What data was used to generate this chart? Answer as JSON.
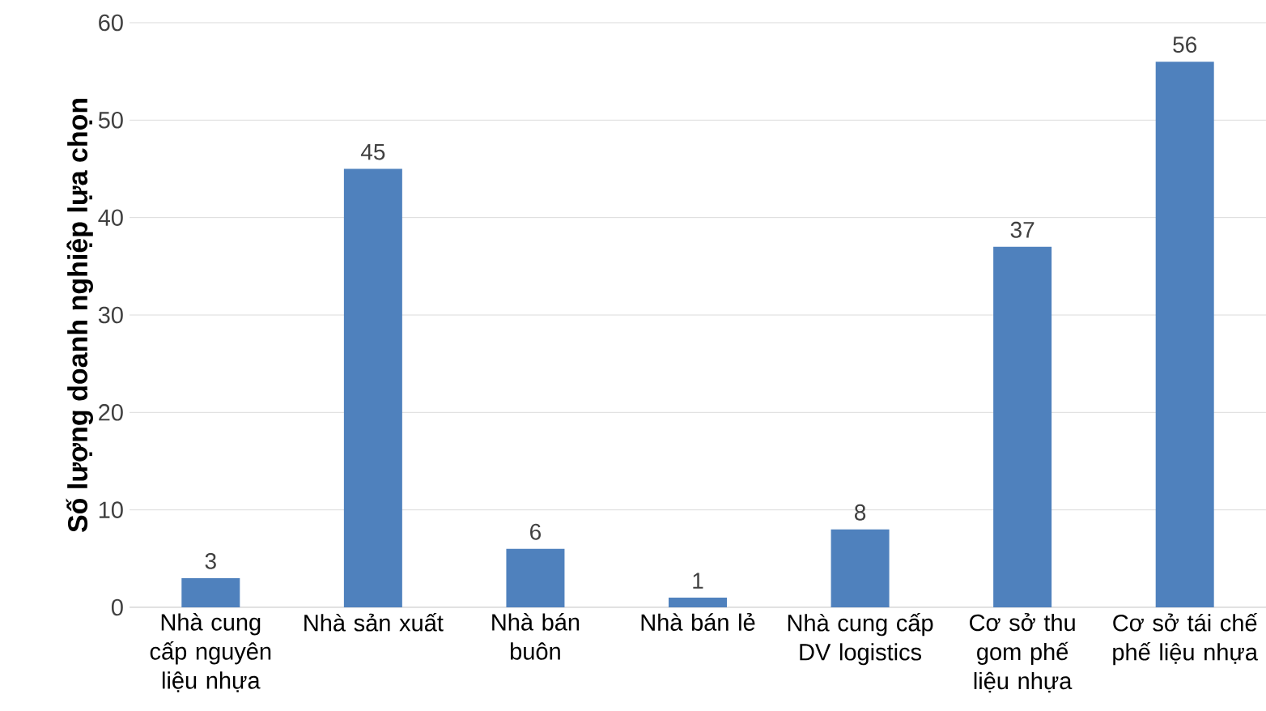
{
  "chart_data": {
    "type": "bar",
    "ylabel": "Số lượng doanh nghiệp lựa chọn",
    "categories": [
      "Nhà cung cấp nguyên liệu nhựa",
      "Nhà sản xuất",
      "Nhà bán buôn",
      "Nhà bán lẻ",
      "Nhà cung cấp DV logistics",
      "Cơ sở thu gom phế liệu nhựa",
      "Cơ sở tái chế phế liệu nhựa"
    ],
    "values": [
      3,
      45,
      6,
      1,
      8,
      37,
      56
    ],
    "color": "#4f81bd",
    "ylim": [
      0,
      60
    ],
    "yticks": [
      0,
      10,
      20,
      30,
      40,
      50,
      60
    ],
    "grid": "y",
    "data_labels": true
  }
}
